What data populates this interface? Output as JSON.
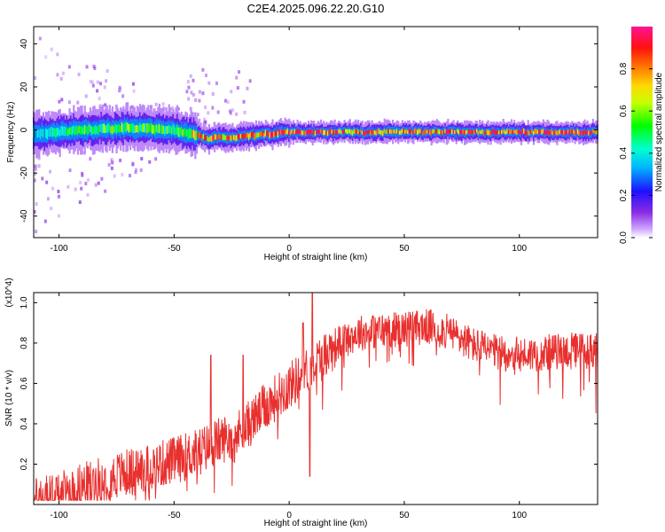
{
  "figure_title": "C2E4.2025.096.22.20.G10",
  "colors": {
    "snr_line": "#e8302e",
    "axis": "#000000",
    "background": "#ffffff"
  },
  "chart_data": [
    {
      "type": "heatmap",
      "title": "",
      "xlabel": "Height of straight line (km)",
      "ylabel": "Frequency (Hz)",
      "xlim": [
        -111,
        134
      ],
      "ylim": [
        -50,
        48
      ],
      "xticks": [
        -100,
        -50,
        0,
        50,
        100
      ],
      "yticks": [
        -40,
        -20,
        0,
        20,
        40
      ],
      "colorbar": {
        "label": "Normalized spectral amplitude",
        "range": [
          0,
          1
        ],
        "ticks": [
          0.0,
          0.2,
          0.4,
          0.6,
          0.8
        ],
        "colormap": "rainbow (violet → blue → cyan → green → yellow → red → magenta)"
      },
      "ridge": {
        "description": "dominant spectral ridge near 0 Hz across height",
        "points": [
          {
            "x": -110,
            "y": -2,
            "amplitude": 0.35
          },
          {
            "x": -90,
            "y": 0,
            "amplitude": 0.5
          },
          {
            "x": -70,
            "y": 1,
            "amplitude": 0.55
          },
          {
            "x": -50,
            "y": 0,
            "amplitude": 0.5
          },
          {
            "x": -35,
            "y": -4,
            "amplitude": 0.8
          },
          {
            "x": -20,
            "y": -3,
            "amplitude": 0.75
          },
          {
            "x": 0,
            "y": -1,
            "amplitude": 0.9
          },
          {
            "x": 20,
            "y": -1,
            "amplitude": 0.8
          },
          {
            "x": 50,
            "y": -1,
            "amplitude": 0.75
          },
          {
            "x": 80,
            "y": -1,
            "amplitude": 0.8
          },
          {
            "x": 100,
            "y": -1,
            "amplitude": 0.85
          },
          {
            "x": 134,
            "y": -1,
            "amplitude": 0.9
          }
        ]
      },
      "grid": false
    },
    {
      "type": "line",
      "title": "",
      "xlabel": "Height of straight line (km)",
      "ylabel": "SNR (10 * v/v)",
      "y_multiplier": "(x10^4)",
      "xlim": [
        -111,
        134
      ],
      "ylim": [
        0,
        1.05
      ],
      "xticks": [
        -100,
        -50,
        0,
        50,
        100
      ],
      "yticks": [
        0.2,
        0.4,
        0.6,
        0.8,
        1.0
      ],
      "series": [
        {
          "envelope": [
            {
              "x": -110,
              "y": 0.03
            },
            {
              "x": -100,
              "y": 0.06
            },
            {
              "x": -90,
              "y": 0.1
            },
            {
              "x": -80,
              "y": 0.14
            },
            {
              "x": -70,
              "y": 0.17
            },
            {
              "x": -60,
              "y": 0.2
            },
            {
              "x": -50,
              "y": 0.23
            },
            {
              "x": -40,
              "y": 0.27
            },
            {
              "x": -30,
              "y": 0.33
            },
            {
              "x": -20,
              "y": 0.38
            },
            {
              "x": -10,
              "y": 0.5
            },
            {
              "x": 0,
              "y": 0.6
            },
            {
              "x": 10,
              "y": 0.7
            },
            {
              "x": 20,
              "y": 0.8
            },
            {
              "x": 30,
              "y": 0.86
            },
            {
              "x": 40,
              "y": 0.87
            },
            {
              "x": 50,
              "y": 0.88
            },
            {
              "x": 60,
              "y": 0.89
            },
            {
              "x": 70,
              "y": 0.86
            },
            {
              "x": 80,
              "y": 0.8
            },
            {
              "x": 90,
              "y": 0.76
            },
            {
              "x": 100,
              "y": 0.75
            },
            {
              "x": 110,
              "y": 0.76
            },
            {
              "x": 120,
              "y": 0.77
            },
            {
              "x": 134,
              "y": 0.78
            }
          ],
          "spikes": [
            {
              "x": -34,
              "y": 0.74
            },
            {
              "x": -20,
              "y": 0.74
            },
            {
              "x": 6,
              "y": 0.9
            },
            {
              "x": 10,
              "y": 1.05
            },
            {
              "x": 9,
              "y": 0.14
            }
          ]
        }
      ],
      "grid": false
    }
  ]
}
